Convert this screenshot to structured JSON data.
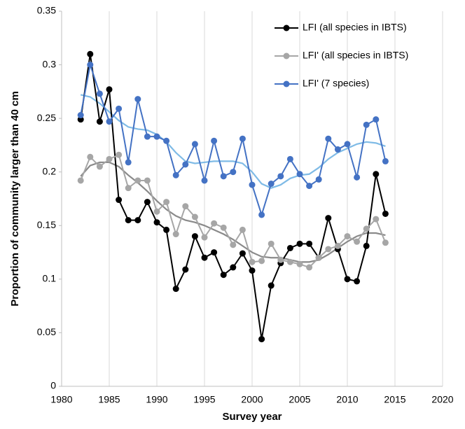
{
  "chart_data": {
    "type": "line",
    "xlabel": "Survey year",
    "ylabel": "Proportion of community larger than 40 cm",
    "x": [
      1982,
      1983,
      1984,
      1985,
      1986,
      1987,
      1988,
      1989,
      1990,
      1991,
      1992,
      1993,
      1994,
      1995,
      1996,
      1997,
      1998,
      1999,
      2000,
      2001,
      2002,
      2003,
      2004,
      2005,
      2006,
      2007,
      2008,
      2009,
      2010,
      2011,
      2012,
      2013,
      2014
    ],
    "series": [
      {
        "color": "#7fbbe6",
        "values": [
          0.272,
          0.27,
          0.264,
          0.256,
          0.248,
          0.242,
          0.24,
          0.239,
          0.235,
          0.228,
          0.218,
          0.21,
          0.208,
          0.209,
          0.21,
          0.21,
          0.21,
          0.208,
          0.2,
          0.189,
          0.185,
          0.188,
          0.194,
          0.197,
          0.198,
          0.204,
          0.212,
          0.218,
          0.222,
          0.226,
          0.228,
          0.227,
          0.224
        ]
      },
      {
        "color": "#8a8a8a",
        "values": [
          0.196,
          0.206,
          0.209,
          0.209,
          0.205,
          0.197,
          0.19,
          0.182,
          0.173,
          0.165,
          0.159,
          0.155,
          0.153,
          0.15,
          0.146,
          0.142,
          0.137,
          0.131,
          0.125,
          0.121,
          0.12,
          0.12,
          0.118,
          0.116,
          0.116,
          0.118,
          0.123,
          0.129,
          0.135,
          0.14,
          0.143,
          0.143,
          0.141
        ]
      },
      {
        "name": "LFI  (all species in IBTS)",
        "color": "#000000",
        "markers": true,
        "values": [
          0.249,
          0.31,
          0.247,
          0.277,
          0.174,
          0.155,
          0.155,
          0.172,
          0.153,
          0.146,
          0.091,
          0.109,
          0.14,
          0.12,
          0.125,
          0.104,
          0.111,
          0.124,
          0.108,
          0.044,
          0.094,
          0.115,
          0.129,
          0.133,
          0.133,
          0.12,
          0.157,
          0.128,
          0.1,
          0.098,
          0.131,
          0.198,
          0.161
        ]
      },
      {
        "name": "LFI' (all species in IBTS)",
        "color": "#a6a6a6",
        "markers": true,
        "values": [
          0.192,
          0.214,
          0.205,
          0.212,
          0.216,
          0.185,
          0.192,
          0.192,
          0.163,
          0.172,
          0.142,
          0.168,
          0.158,
          0.139,
          0.152,
          0.148,
          0.132,
          0.146,
          0.116,
          0.117,
          0.133,
          0.118,
          0.116,
          0.114,
          0.111,
          0.12,
          0.128,
          0.131,
          0.14,
          0.135,
          0.147,
          0.156,
          0.134
        ]
      },
      {
        "name": "LFI' (7 species)",
        "color": "#4472c4",
        "markers": true,
        "values": [
          0.253,
          0.3,
          0.273,
          0.247,
          0.259,
          0.209,
          0.268,
          0.233,
          0.233,
          0.229,
          0.197,
          0.207,
          0.226,
          0.192,
          0.229,
          0.196,
          0.2,
          0.231,
          0.188,
          0.16,
          0.189,
          0.196,
          0.212,
          0.198,
          0.187,
          0.193,
          0.231,
          0.221,
          0.226,
          0.195,
          0.244,
          0.249,
          0.21
        ]
      }
    ],
    "xlim": [
      1980,
      2020
    ],
    "xticks": [
      1980,
      1985,
      1990,
      1995,
      2000,
      2005,
      2010,
      2015,
      2020
    ],
    "ylim": [
      0,
      0.35
    ],
    "yticks": [
      0,
      0.05,
      0.1,
      0.15,
      0.2,
      0.25,
      0.3,
      0.35
    ],
    "grid": "x",
    "legend": "upper right"
  }
}
